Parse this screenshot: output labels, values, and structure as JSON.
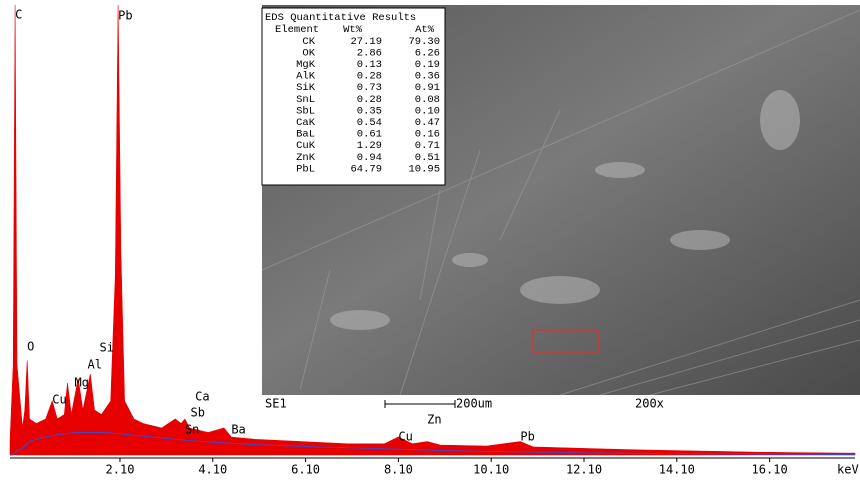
{
  "chart_data": {
    "type": "area",
    "x_label": "keV",
    "x": [
      -0.27,
      -0.2,
      -0.16,
      -0.12,
      0.0,
      0.05,
      0.1,
      0.15,
      0.3,
      0.5,
      0.64,
      0.75,
      0.9,
      0.97,
      1.05,
      1.2,
      1.3,
      1.46,
      1.55,
      1.7,
      1.9,
      2.0,
      2.06,
      2.12,
      2.2,
      2.4,
      2.6,
      3.0,
      3.29,
      3.42,
      3.5,
      3.6,
      4.0,
      4.34,
      4.5,
      5.0,
      6.0,
      7.0,
      7.8,
      8.1,
      8.4,
      8.72,
      9.0,
      10.0,
      10.73,
      11.0,
      12.0,
      13.0,
      14.0,
      15.0,
      16.0,
      17.0,
      17.94
    ],
    "series": [
      {
        "type": "area",
        "color": "#e60000",
        "values": [
          3,
          20,
          100,
          20,
          6,
          10,
          21,
          8,
          7,
          8,
          12,
          8,
          9,
          16,
          9,
          17,
          10,
          18,
          10,
          9,
          12,
          40,
          100,
          45,
          12,
          8,
          7,
          6,
          8,
          7,
          8,
          6,
          5,
          6,
          4,
          3.5,
          3,
          2.5,
          2.5,
          4,
          2.5,
          3,
          2.2,
          2,
          3,
          1.8,
          1.5,
          1.2,
          1,
          0.8,
          0.6,
          0.5,
          0.4
        ]
      },
      {
        "type": "line",
        "color": "#4646c8",
        "values": [
          0,
          0,
          0.5,
          1,
          1.5,
          2,
          2.5,
          3,
          3.5,
          4,
          4.3,
          4.5,
          4.7,
          4.8,
          4.9,
          5,
          5,
          5,
          5,
          5,
          4.9,
          4.8,
          4.8,
          4.7,
          4.6,
          4.4,
          4.2,
          3.8,
          3.5,
          3.4,
          3.3,
          3.2,
          2.9,
          2.7,
          2.6,
          2.3,
          1.9,
          1.6,
          1.4,
          1.3,
          1.2,
          1.1,
          1.0,
          0.8,
          0.7,
          0.65,
          0.5,
          0.4,
          0.3,
          0.25,
          0.2,
          0.15,
          0.1
        ]
      }
    ],
    "xlim": [
      -0.27,
      17.94
    ],
    "ylim": [
      0,
      100
    ],
    "xticks": [
      {
        "value": 2.1,
        "label": "2.10"
      },
      {
        "value": 4.1,
        "label": "4.10"
      },
      {
        "value": 6.1,
        "label": "6.10"
      },
      {
        "value": 8.1,
        "label": "8.10"
      },
      {
        "value": 10.1,
        "label": "10.10"
      },
      {
        "value": 12.1,
        "label": "12.10"
      },
      {
        "value": 14.1,
        "label": "14.10"
      },
      {
        "value": 16.1,
        "label": "16.10"
      }
    ],
    "annotations": [
      {
        "text": "C",
        "x": -0.16,
        "y": 97.8
      },
      {
        "text": "Pb",
        "x": 2.06,
        "y": 97.6
      },
      {
        "text": "O",
        "x": 0.1,
        "y": 24
      },
      {
        "text": "Si",
        "x": 1.66,
        "y": 23.8
      },
      {
        "text": "Al",
        "x": 1.4,
        "y": 20
      },
      {
        "text": "Mg",
        "x": 1.12,
        "y": 16
      },
      {
        "text": "Cu",
        "x": 0.64,
        "y": 12.2
      },
      {
        "text": "Ca",
        "x": 3.72,
        "y": 12.9
      },
      {
        "text": "Sb",
        "x": 3.62,
        "y": 9.3
      },
      {
        "text": "Sn",
        "x": 3.5,
        "y": 5.6
      },
      {
        "text": "Ba",
        "x": 4.5,
        "y": 5.6
      },
      {
        "text": "Zn",
        "x": 8.72,
        "y": 7.8
      },
      {
        "text": "Cu",
        "x": 8.1,
        "y": 4
      },
      {
        "text": "Pb",
        "x": 10.73,
        "y": 4
      }
    ]
  },
  "eds_table": {
    "title": "EDS Quantitative Results",
    "columns": [
      "Element",
      "Wt%",
      "At%"
    ],
    "rows": [
      [
        "CK",
        "27.19",
        "79.30"
      ],
      [
        "OK",
        "2.86",
        "6.26"
      ],
      [
        "MgK",
        "0.13",
        "0.19"
      ],
      [
        "AlK",
        "0.28",
        "0.36"
      ],
      [
        "SiK",
        "0.73",
        "0.91"
      ],
      [
        "SnL",
        "0.28",
        "0.08"
      ],
      [
        "SbL",
        "0.35",
        "0.10"
      ],
      [
        "CaK",
        "0.54",
        "0.47"
      ],
      [
        "BaL",
        "0.61",
        "0.16"
      ],
      [
        "CuK",
        "1.29",
        "0.71"
      ],
      [
        "ZnK",
        "0.94",
        "0.51"
      ],
      [
        "PbL",
        "64.79",
        "10.95"
      ]
    ]
  },
  "image_labels": {
    "detector": "SE1",
    "scale_bar": "200um",
    "magnification": "200x"
  }
}
